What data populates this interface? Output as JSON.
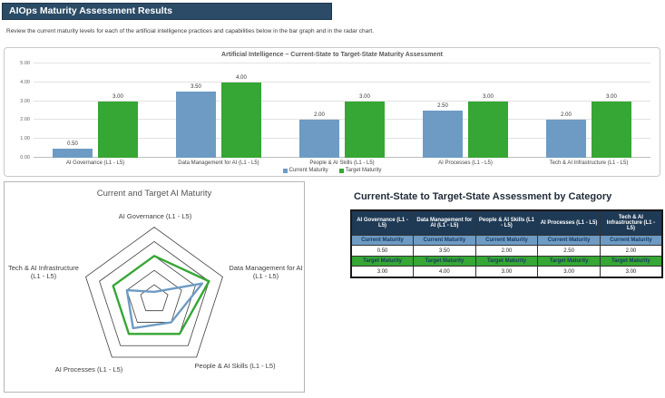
{
  "header": {
    "title": "AIOps Maturity Assessment Results"
  },
  "intro": "Review the current maturity levels for each of the artificial intelligence practices and capabilities below in the bar graph and in the radar chart.",
  "colors": {
    "header_bar": "#2C4B66",
    "table_header": "#1F3A55",
    "current": "#6D9BC3",
    "target": "#36A634"
  },
  "categories": [
    "AI Governance (L1 - L5)",
    "Data Management for AI (L1 - L5)",
    "People & AI Skills (L1 - L5)",
    "AI Processes (L1 - L5)",
    "Tech & AI Infrastructure (L1 - L5)"
  ],
  "chart_data": [
    {
      "type": "bar",
      "title": "Artificial Intelligence – Current-State to Target-State Maturity Assessment",
      "categories": [
        "AI Governance (L1 - L5)",
        "Data Management for AI (L1 - L5)",
        "People & AI Skills (L1 - L5)",
        "AI Processes (L1 - L5)",
        "Tech & AI Infrastructure (L1 - L5)"
      ],
      "series": [
        {
          "name": "Current Maturity",
          "color": "#6D9BC3",
          "values": [
            0.5,
            3.5,
            2.0,
            2.5,
            2.0
          ]
        },
        {
          "name": "Target Maturity",
          "color": "#36A634",
          "values": [
            3.0,
            4.0,
            3.0,
            3.0,
            3.0
          ]
        }
      ],
      "ylim": [
        0,
        5
      ],
      "yticks": [
        "0.00",
        "1.00",
        "2.00",
        "3.00",
        "4.00",
        "5.00"
      ],
      "grid": true,
      "legend_position": "bottom"
    },
    {
      "type": "radar",
      "title": "Current and Target AI Maturity",
      "categories": [
        "AI Governance (L1 - L5)",
        "Data Management for AI (L1 - L5)",
        "People & AI Skills (L1 - L5)",
        "AI Processes (L1 - L5)",
        "Tech & AI Infrastructure (L1 - L5)"
      ],
      "series": [
        {
          "name": "Current Maturity",
          "color": "#6D9BC3",
          "values": [
            0.5,
            3.5,
            2.0,
            2.5,
            2.0
          ]
        },
        {
          "name": "Target Maturity",
          "color": "#36A634",
          "values": [
            3.0,
            4.0,
            3.0,
            3.0,
            3.0
          ]
        }
      ],
      "rings": 5,
      "rlim": [
        0,
        5
      ],
      "legend_position": "none"
    }
  ],
  "table": {
    "title": "Current-State to Target-State Assessment by Category",
    "current_label": "Current Maturity",
    "target_label": "Target Maturity",
    "columns": [
      {
        "header": "AI Governance (L1 - L5)",
        "current_value": "0.50",
        "target_value": "3.00"
      },
      {
        "header": "Data Management for AI (L1 - L5)",
        "current_value": "3.50",
        "target_value": "4.00"
      },
      {
        "header": "People & AI Skills (L1 - L5)",
        "current_value": "2.00",
        "target_value": "3.00"
      },
      {
        "header": "AI Processes (L1 - L5)",
        "current_value": "2.50",
        "target_value": "3.00"
      },
      {
        "header": "Tech & AI Infrastructure (L1 - L5)",
        "current_value": "2.00",
        "target_value": "3.00"
      }
    ]
  }
}
